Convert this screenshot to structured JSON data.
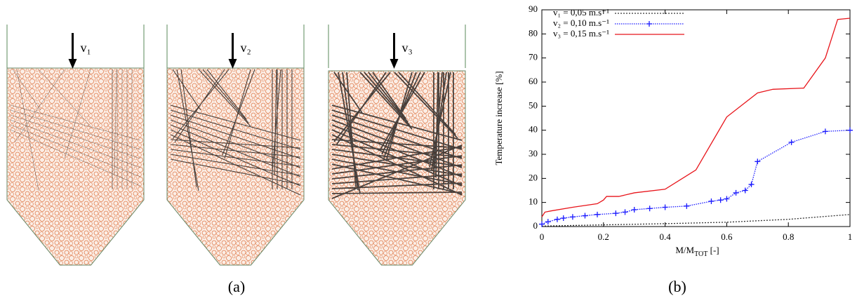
{
  "panels": [
    {
      "label": "(a)",
      "arrows": [
        "v₁",
        "v₂",
        "v₃"
      ]
    },
    {
      "label": "(b)"
    }
  ],
  "chart_data": {
    "type": "line",
    "ylabel": "Temperature increase [%]",
    "xlabel": {
      "text": "M/M",
      "sub": "TOT",
      "tail": " [-]"
    },
    "xlim": [
      0,
      1
    ],
    "xticks": [
      0,
      0.2,
      0.4,
      0.6,
      0.8,
      1
    ],
    "ylim": [
      0,
      90
    ],
    "yticks": [
      0,
      10,
      20,
      30,
      40,
      50,
      60,
      70,
      80,
      90
    ],
    "legend": "upper-left",
    "series": [
      {
        "name": "v₁ = 0,05 m.s⁻¹",
        "color": "#333333",
        "style": "dotted",
        "x": [
          0,
          0.2,
          0.4,
          0.6,
          0.8,
          1
        ],
        "values": [
          0.2,
          0.7,
          1.2,
          1.8,
          3,
          5
        ]
      },
      {
        "name": "v₂ = 0,10 m.s⁻¹",
        "color": "#1a1aff",
        "style": "dotted-plus",
        "x": [
          0,
          0.02,
          0.05,
          0.07,
          0.1,
          0.14,
          0.18,
          0.24,
          0.27,
          0.3,
          0.35,
          0.4,
          0.47,
          0.55,
          0.58,
          0.6,
          0.63,
          0.66,
          0.68,
          0.7,
          0.81,
          0.92,
          1
        ],
        "values": [
          1,
          2,
          3,
          3.5,
          4,
          4.5,
          5,
          5.5,
          6,
          7,
          7.5,
          8,
          8.5,
          10.5,
          11,
          11.5,
          14,
          15,
          17.5,
          27,
          35,
          39.5,
          40
        ]
      },
      {
        "name": "v₃ = 0,15 m.s⁻¹",
        "color": "#e8141a",
        "style": "solid",
        "x": [
          0,
          0.01,
          0.03,
          0.1,
          0.18,
          0.2,
          0.21,
          0.25,
          0.3,
          0.4,
          0.5,
          0.6,
          0.7,
          0.75,
          0.85,
          0.92,
          0.96,
          1
        ],
        "values": [
          4,
          6,
          6.5,
          8,
          9.5,
          11,
          12.5,
          12.5,
          14,
          15.5,
          23.5,
          45.5,
          55.5,
          57,
          57.5,
          70,
          86,
          86.5
        ]
      }
    ]
  }
}
